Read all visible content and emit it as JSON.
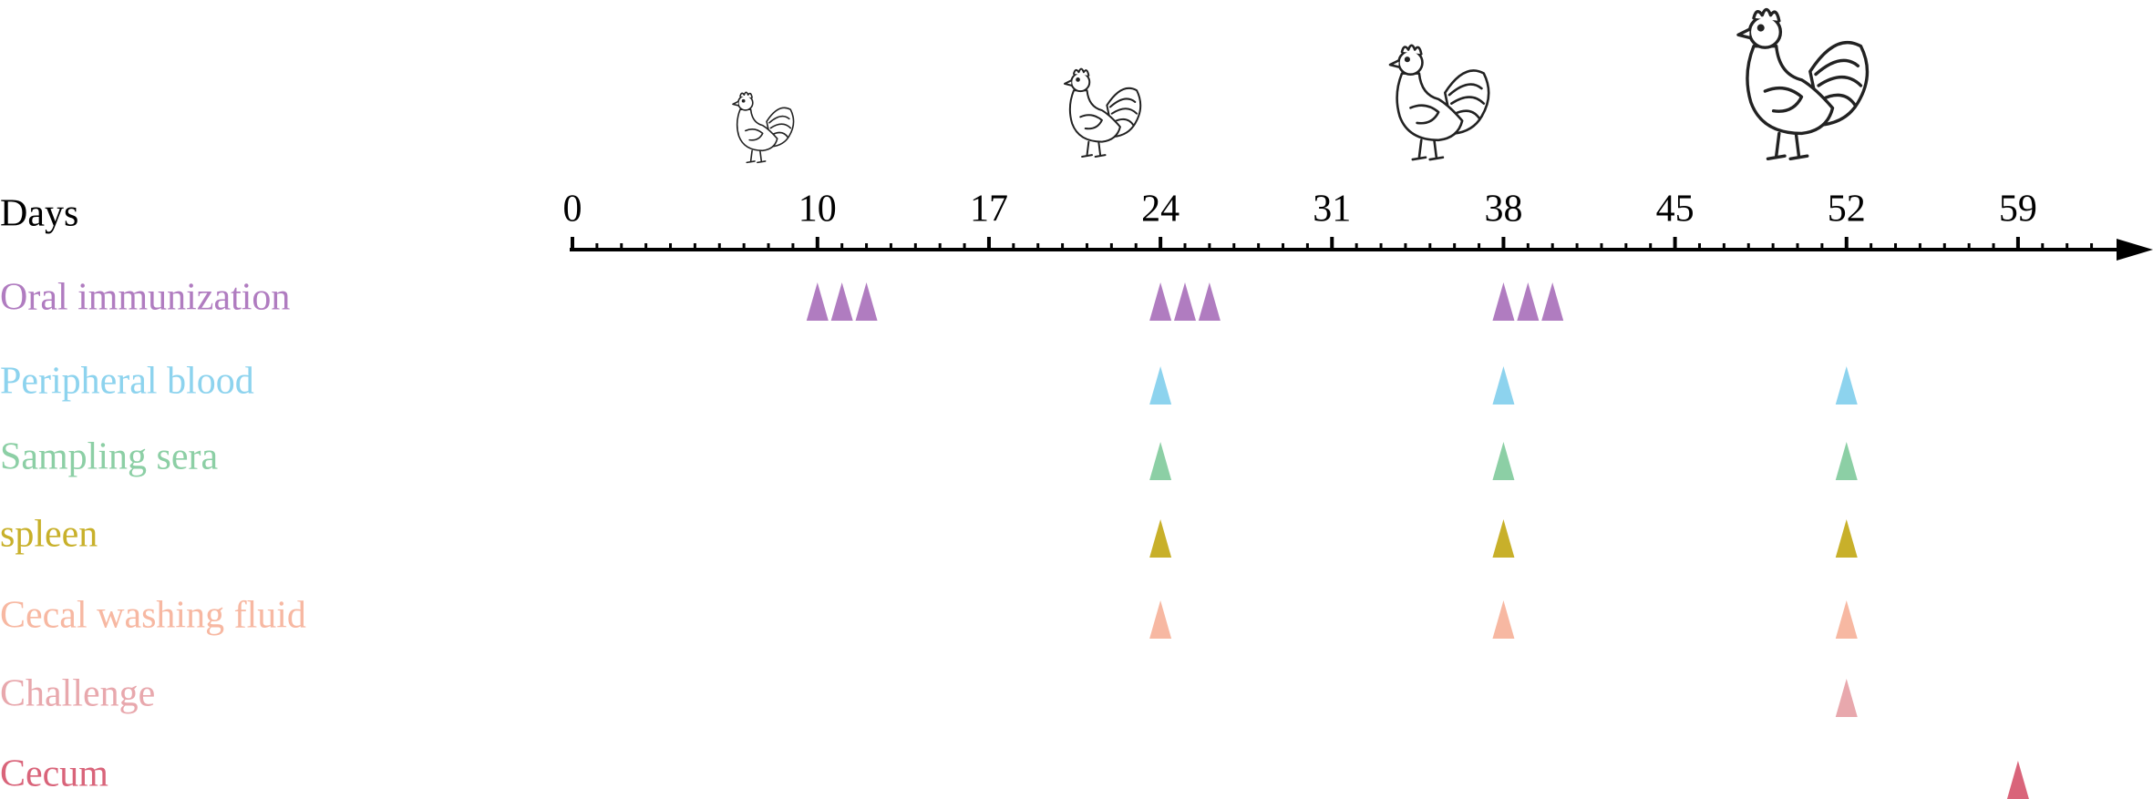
{
  "axis": {
    "label": "Days",
    "ticks": [
      0,
      10,
      17,
      24,
      31,
      38,
      45,
      52,
      59
    ]
  },
  "rows": [
    {
      "label": "Oral immunization",
      "color": "#b07cc0",
      "days": [
        10,
        11,
        12,
        24,
        25,
        26,
        38,
        39,
        40
      ]
    },
    {
      "label": "Peripheral blood",
      "color": "#8dd3ee",
      "days": [
        24,
        38,
        52
      ]
    },
    {
      "label": "Sampling sera",
      "color": "#8ccfa5",
      "days": [
        24,
        38,
        52
      ]
    },
    {
      "label": "spleen",
      "color": "#c8b02a",
      "days": [
        24,
        38,
        52
      ]
    },
    {
      "label": "Cecal washing fluid",
      "color": "#f7b8a2",
      "days": [
        24,
        38,
        52
      ]
    },
    {
      "label": "Challenge",
      "color": "#e8a8ad",
      "days": [
        52
      ]
    },
    {
      "label": "Cecum",
      "color": "#d9647a",
      "days": [
        59
      ]
    }
  ]
}
